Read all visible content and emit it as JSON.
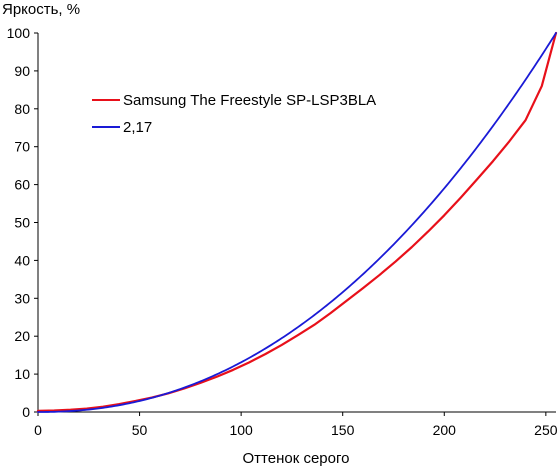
{
  "chart_data": {
    "type": "line",
    "title": "",
    "ylabel": "Яркость, %",
    "xlabel": "Оттенок серого",
    "xlim": [
      0,
      255
    ],
    "ylim": [
      0,
      100
    ],
    "x_ticks": [
      0,
      50,
      100,
      150,
      200,
      250
    ],
    "y_ticks": [
      0,
      10,
      20,
      30,
      40,
      50,
      60,
      70,
      80,
      90,
      100
    ],
    "grid": false,
    "legend_position": "top-left",
    "series": [
      {
        "name": "Samsung The Freestyle SP-LSP3BLA",
        "color": "#e8101a",
        "x": [
          0,
          8,
          16,
          24,
          32,
          40,
          48,
          56,
          64,
          72,
          80,
          88,
          96,
          104,
          112,
          120,
          128,
          136,
          144,
          152,
          160,
          168,
          176,
          184,
          192,
          200,
          208,
          216,
          224,
          232,
          240,
          248,
          255
        ],
        "y": [
          0.3,
          0.4,
          0.6,
          0.9,
          1.4,
          2.1,
          2.9,
          3.8,
          4.9,
          6.2,
          7.7,
          9.3,
          11.1,
          13.1,
          15.3,
          17.7,
          20.3,
          23.0,
          26.1,
          29.4,
          32.7,
          36.1,
          39.7,
          43.5,
          47.6,
          51.9,
          56.5,
          61.3,
          66.2,
          71.4,
          77.0,
          86.0,
          100.0
        ]
      },
      {
        "name": "2,17",
        "color": "#1a1ad6",
        "gamma": 2.17
      }
    ]
  }
}
